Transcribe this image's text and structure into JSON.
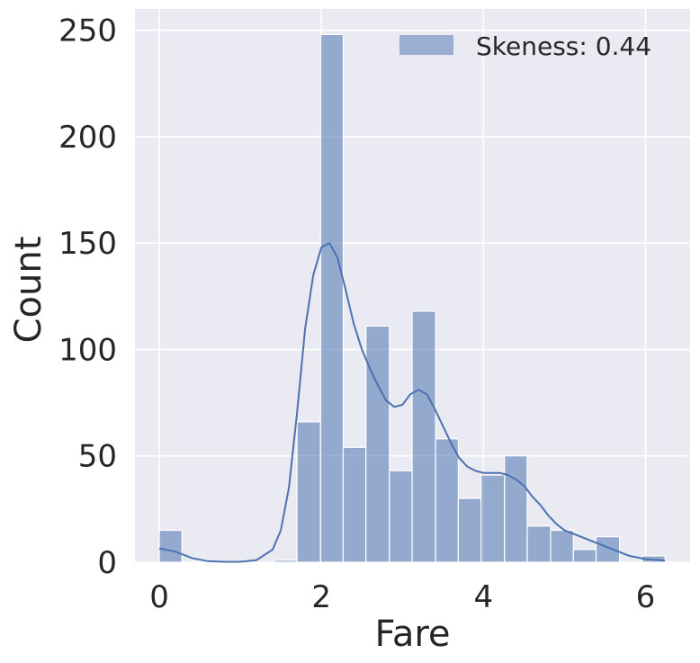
{
  "chart_data": {
    "type": "bar",
    "subtype": "histogram",
    "xlabel": "Fare",
    "ylabel": "Count",
    "xlim": [
      -0.3,
      6.55
    ],
    "ylim": [
      0,
      260
    ],
    "xticks": [
      0,
      2,
      4,
      6
    ],
    "yticks": [
      0,
      50,
      100,
      150,
      200,
      250
    ],
    "grid": true,
    "legend": {
      "position": "top-right",
      "entries": [
        {
          "label": "Skeness: 0.44"
        }
      ]
    },
    "colors": {
      "bar": "#4c72b0",
      "line": "#4c72b0",
      "background": "#eaeaf2",
      "grid": "#ffffff"
    },
    "series": [
      {
        "name": "Skeness: 0.44",
        "bins": [
          {
            "x0": 0.0,
            "x1": 0.28,
            "count": 15
          },
          {
            "x0": 0.28,
            "x1": 0.57,
            "count": 0
          },
          {
            "x0": 0.57,
            "x1": 0.85,
            "count": 0
          },
          {
            "x0": 0.85,
            "x1": 1.14,
            "count": 0
          },
          {
            "x0": 1.14,
            "x1": 1.42,
            "count": 0
          },
          {
            "x0": 1.42,
            "x1": 1.7,
            "count": 1
          },
          {
            "x0": 1.7,
            "x1": 1.99,
            "count": 66
          },
          {
            "x0": 1.99,
            "x1": 2.27,
            "count": 248
          },
          {
            "x0": 2.27,
            "x1": 2.55,
            "count": 54
          },
          {
            "x0": 2.55,
            "x1": 2.84,
            "count": 111
          },
          {
            "x0": 2.84,
            "x1": 3.12,
            "count": 43
          },
          {
            "x0": 3.12,
            "x1": 3.41,
            "count": 118
          },
          {
            "x0": 3.41,
            "x1": 3.69,
            "count": 58
          },
          {
            "x0": 3.69,
            "x1": 3.97,
            "count": 30
          },
          {
            "x0": 3.97,
            "x1": 4.26,
            "count": 41
          },
          {
            "x0": 4.26,
            "x1": 4.54,
            "count": 50
          },
          {
            "x0": 4.54,
            "x1": 4.83,
            "count": 17
          },
          {
            "x0": 4.83,
            "x1": 5.11,
            "count": 15
          },
          {
            "x0": 5.11,
            "x1": 5.39,
            "count": 6
          },
          {
            "x0": 5.39,
            "x1": 5.68,
            "count": 12
          },
          {
            "x0": 5.68,
            "x1": 5.96,
            "count": 0
          },
          {
            "x0": 5.96,
            "x1": 6.24,
            "count": 3
          }
        ],
        "kde": {
          "x": [
            0.0,
            0.2,
            0.4,
            0.6,
            0.8,
            1.0,
            1.2,
            1.4,
            1.5,
            1.6,
            1.7,
            1.8,
            1.9,
            2.0,
            2.1,
            2.2,
            2.3,
            2.4,
            2.5,
            2.6,
            2.7,
            2.8,
            2.9,
            3.0,
            3.1,
            3.2,
            3.3,
            3.4,
            3.5,
            3.6,
            3.7,
            3.8,
            3.9,
            4.0,
            4.1,
            4.2,
            4.3,
            4.4,
            4.5,
            4.6,
            4.7,
            4.8,
            4.9,
            5.0,
            5.2,
            5.4,
            5.6,
            5.8,
            6.0,
            6.24
          ],
          "y": [
            6.5,
            5,
            2,
            0.5,
            0.2,
            0.2,
            1,
            6,
            15,
            35,
            70,
            110,
            135,
            148,
            150,
            143,
            128,
            112,
            100,
            91,
            83,
            76,
            73,
            74,
            79,
            81,
            79,
            72,
            64,
            56,
            49,
            45,
            43,
            42,
            42,
            42,
            41,
            39,
            36,
            31,
            27,
            22,
            18,
            15,
            12,
            9,
            6,
            3,
            1.5,
            0.8
          ]
        }
      }
    ]
  }
}
